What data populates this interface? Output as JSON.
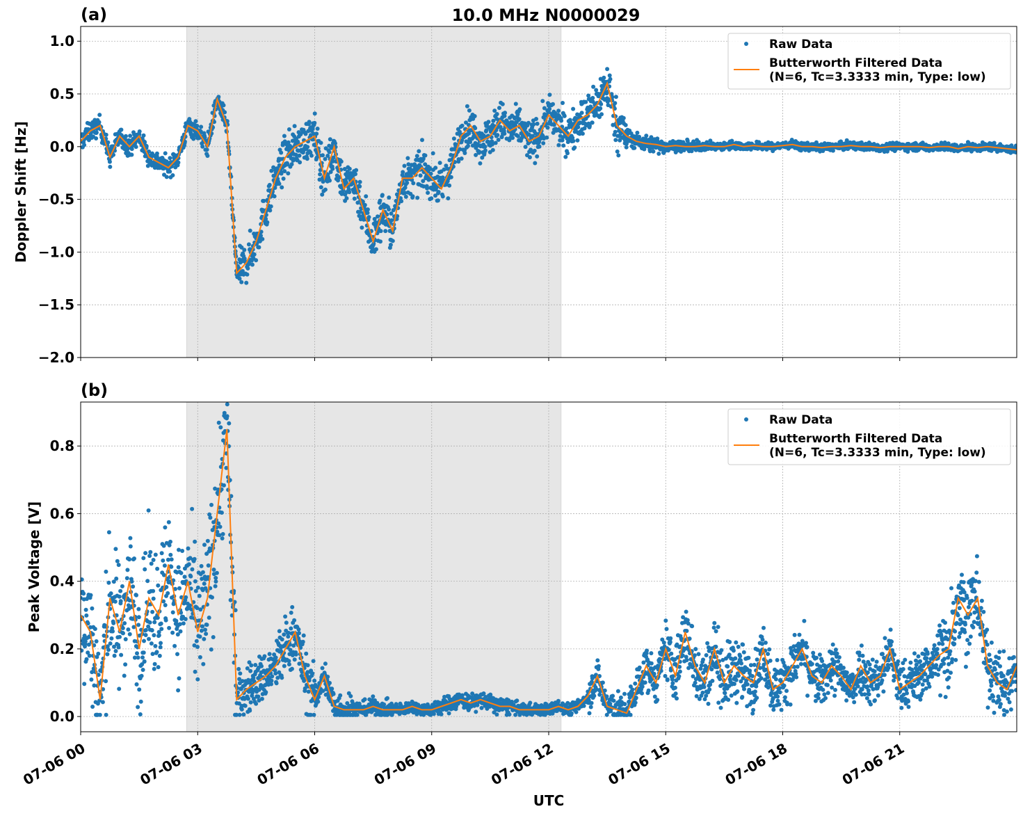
{
  "figure_title": "10.0 MHz N0000029",
  "xlabel": "UTC",
  "colors": {
    "raw": "#1f77b4",
    "filtered": "#ff7f0e",
    "shade": "#e6e6e6",
    "grid": "#b0b0b0"
  },
  "legend": {
    "raw_label": "Raw Data",
    "filtered_label_line1": "Butterworth Filtered Data",
    "filtered_label_line2": "(N=6, Tc=3.3333 min, Type: low)",
    "position": "top-right"
  },
  "chart_data": [
    {
      "type": "scatter+line",
      "panel_label": "(a)",
      "ylabel": "Doppler Shift [Hz]",
      "xlim": [
        "07-06 00:00",
        "07-07 00:00"
      ],
      "ylim": [
        -2.0,
        1.14
      ],
      "yticks": [
        "−2.0",
        "−1.5",
        "−1.0",
        "−0.5",
        "0.0",
        "0.5",
        "1.0"
      ],
      "ytick_values": [
        -2.0,
        -1.5,
        -1.0,
        -0.5,
        0.0,
        0.5,
        1.0
      ],
      "xticks": [
        "07-06 00",
        "07-06 03",
        "07-06 06",
        "07-06 09",
        "07-06 12",
        "07-06 15",
        "07-06 18",
        "07-06 21"
      ],
      "xtick_labels_shown": false,
      "grid": true,
      "shaded_span": [
        "07-06 02:43",
        "07-06 12:19"
      ],
      "t_start": "07-06 00:00",
      "t_step_min": 15,
      "filtered": [
        0.05,
        0.15,
        0.2,
        -0.1,
        0.1,
        0.0,
        0.1,
        -0.1,
        -0.15,
        -0.2,
        -0.1,
        0.2,
        0.15,
        0.0,
        0.45,
        0.2,
        -1.2,
        -1.1,
        -0.9,
        -0.6,
        -0.3,
        -0.1,
        0.0,
        0.05,
        0.1,
        -0.3,
        0.0,
        -0.4,
        -0.3,
        -0.6,
        -0.9,
        -0.6,
        -0.8,
        -0.3,
        -0.3,
        -0.2,
        -0.3,
        -0.4,
        -0.2,
        0.1,
        0.2,
        0.05,
        0.1,
        0.25,
        0.15,
        0.2,
        0.05,
        0.1,
        0.3,
        0.2,
        0.1,
        0.25,
        0.3,
        0.4,
        0.6,
        0.2,
        0.1,
        0.05,
        0.03,
        0.02,
        0.0,
        0.01,
        0.0,
        0.0,
        0.01,
        0.0,
        0.0,
        0.02,
        0.0,
        0.01,
        0.0,
        0.0,
        0.01,
        0.02,
        0.0,
        0.0,
        -0.01,
        0.0,
        0.0,
        0.01,
        0.0,
        0.0,
        -0.01,
        0.0,
        0.0,
        0.0,
        0.0,
        -0.01,
        0.0,
        0.0,
        -0.02,
        0.0,
        -0.01,
        0.0,
        -0.01,
        -0.02,
        -0.03
      ],
      "raw_spread_hourly": [
        0.15,
        0.15,
        0.15,
        0.15,
        0.3,
        0.3,
        0.35,
        0.35,
        0.3,
        0.3,
        0.3,
        0.3,
        0.3,
        0.35,
        0.12,
        0.08,
        0.06,
        0.06,
        0.06,
        0.06,
        0.06,
        0.06,
        0.06,
        0.06
      ]
    },
    {
      "type": "scatter+line",
      "panel_label": "(b)",
      "ylabel": "Peak Voltage [V]",
      "xlim": [
        "07-06 00:00",
        "07-07 00:00"
      ],
      "ylim": [
        -0.045,
        0.93
      ],
      "yticks": [
        "0.0",
        "0.2",
        "0.4",
        "0.6",
        "0.8"
      ],
      "ytick_values": [
        0.0,
        0.2,
        0.4,
        0.6,
        0.8
      ],
      "xticks": [
        "07-06 00",
        "07-06 03",
        "07-06 06",
        "07-06 09",
        "07-06 12",
        "07-06 15",
        "07-06 18",
        "07-06 21"
      ],
      "xtick_labels_shown": true,
      "grid": true,
      "shaded_span": [
        "07-06 02:43",
        "07-06 12:19"
      ],
      "t_start": "07-06 00:00",
      "t_step_min": 15,
      "filtered": [
        0.3,
        0.25,
        0.05,
        0.35,
        0.25,
        0.4,
        0.2,
        0.35,
        0.3,
        0.45,
        0.3,
        0.4,
        0.25,
        0.35,
        0.6,
        0.85,
        0.05,
        0.08,
        0.1,
        0.12,
        0.15,
        0.2,
        0.25,
        0.12,
        0.05,
        0.12,
        0.03,
        0.02,
        0.02,
        0.02,
        0.03,
        0.02,
        0.02,
        0.02,
        0.03,
        0.02,
        0.02,
        0.03,
        0.04,
        0.05,
        0.04,
        0.05,
        0.04,
        0.03,
        0.03,
        0.02,
        0.02,
        0.02,
        0.02,
        0.03,
        0.02,
        0.03,
        0.06,
        0.12,
        0.03,
        0.02,
        0.01,
        0.08,
        0.15,
        0.1,
        0.2,
        0.12,
        0.25,
        0.15,
        0.1,
        0.2,
        0.1,
        0.15,
        0.12,
        0.1,
        0.2,
        0.08,
        0.1,
        0.15,
        0.2,
        0.12,
        0.1,
        0.15,
        0.12,
        0.08,
        0.15,
        0.1,
        0.12,
        0.2,
        0.08,
        0.1,
        0.12,
        0.15,
        0.18,
        0.2,
        0.35,
        0.3,
        0.35,
        0.15,
        0.1,
        0.08,
        0.15
      ],
      "raw_spread_hourly": [
        0.3,
        0.3,
        0.3,
        0.35,
        0.12,
        0.15,
        0.08,
        0.04,
        0.03,
        0.04,
        0.04,
        0.03,
        0.03,
        0.08,
        0.1,
        0.15,
        0.15,
        0.13,
        0.12,
        0.12,
        0.12,
        0.12,
        0.22,
        0.15
      ]
    }
  ]
}
